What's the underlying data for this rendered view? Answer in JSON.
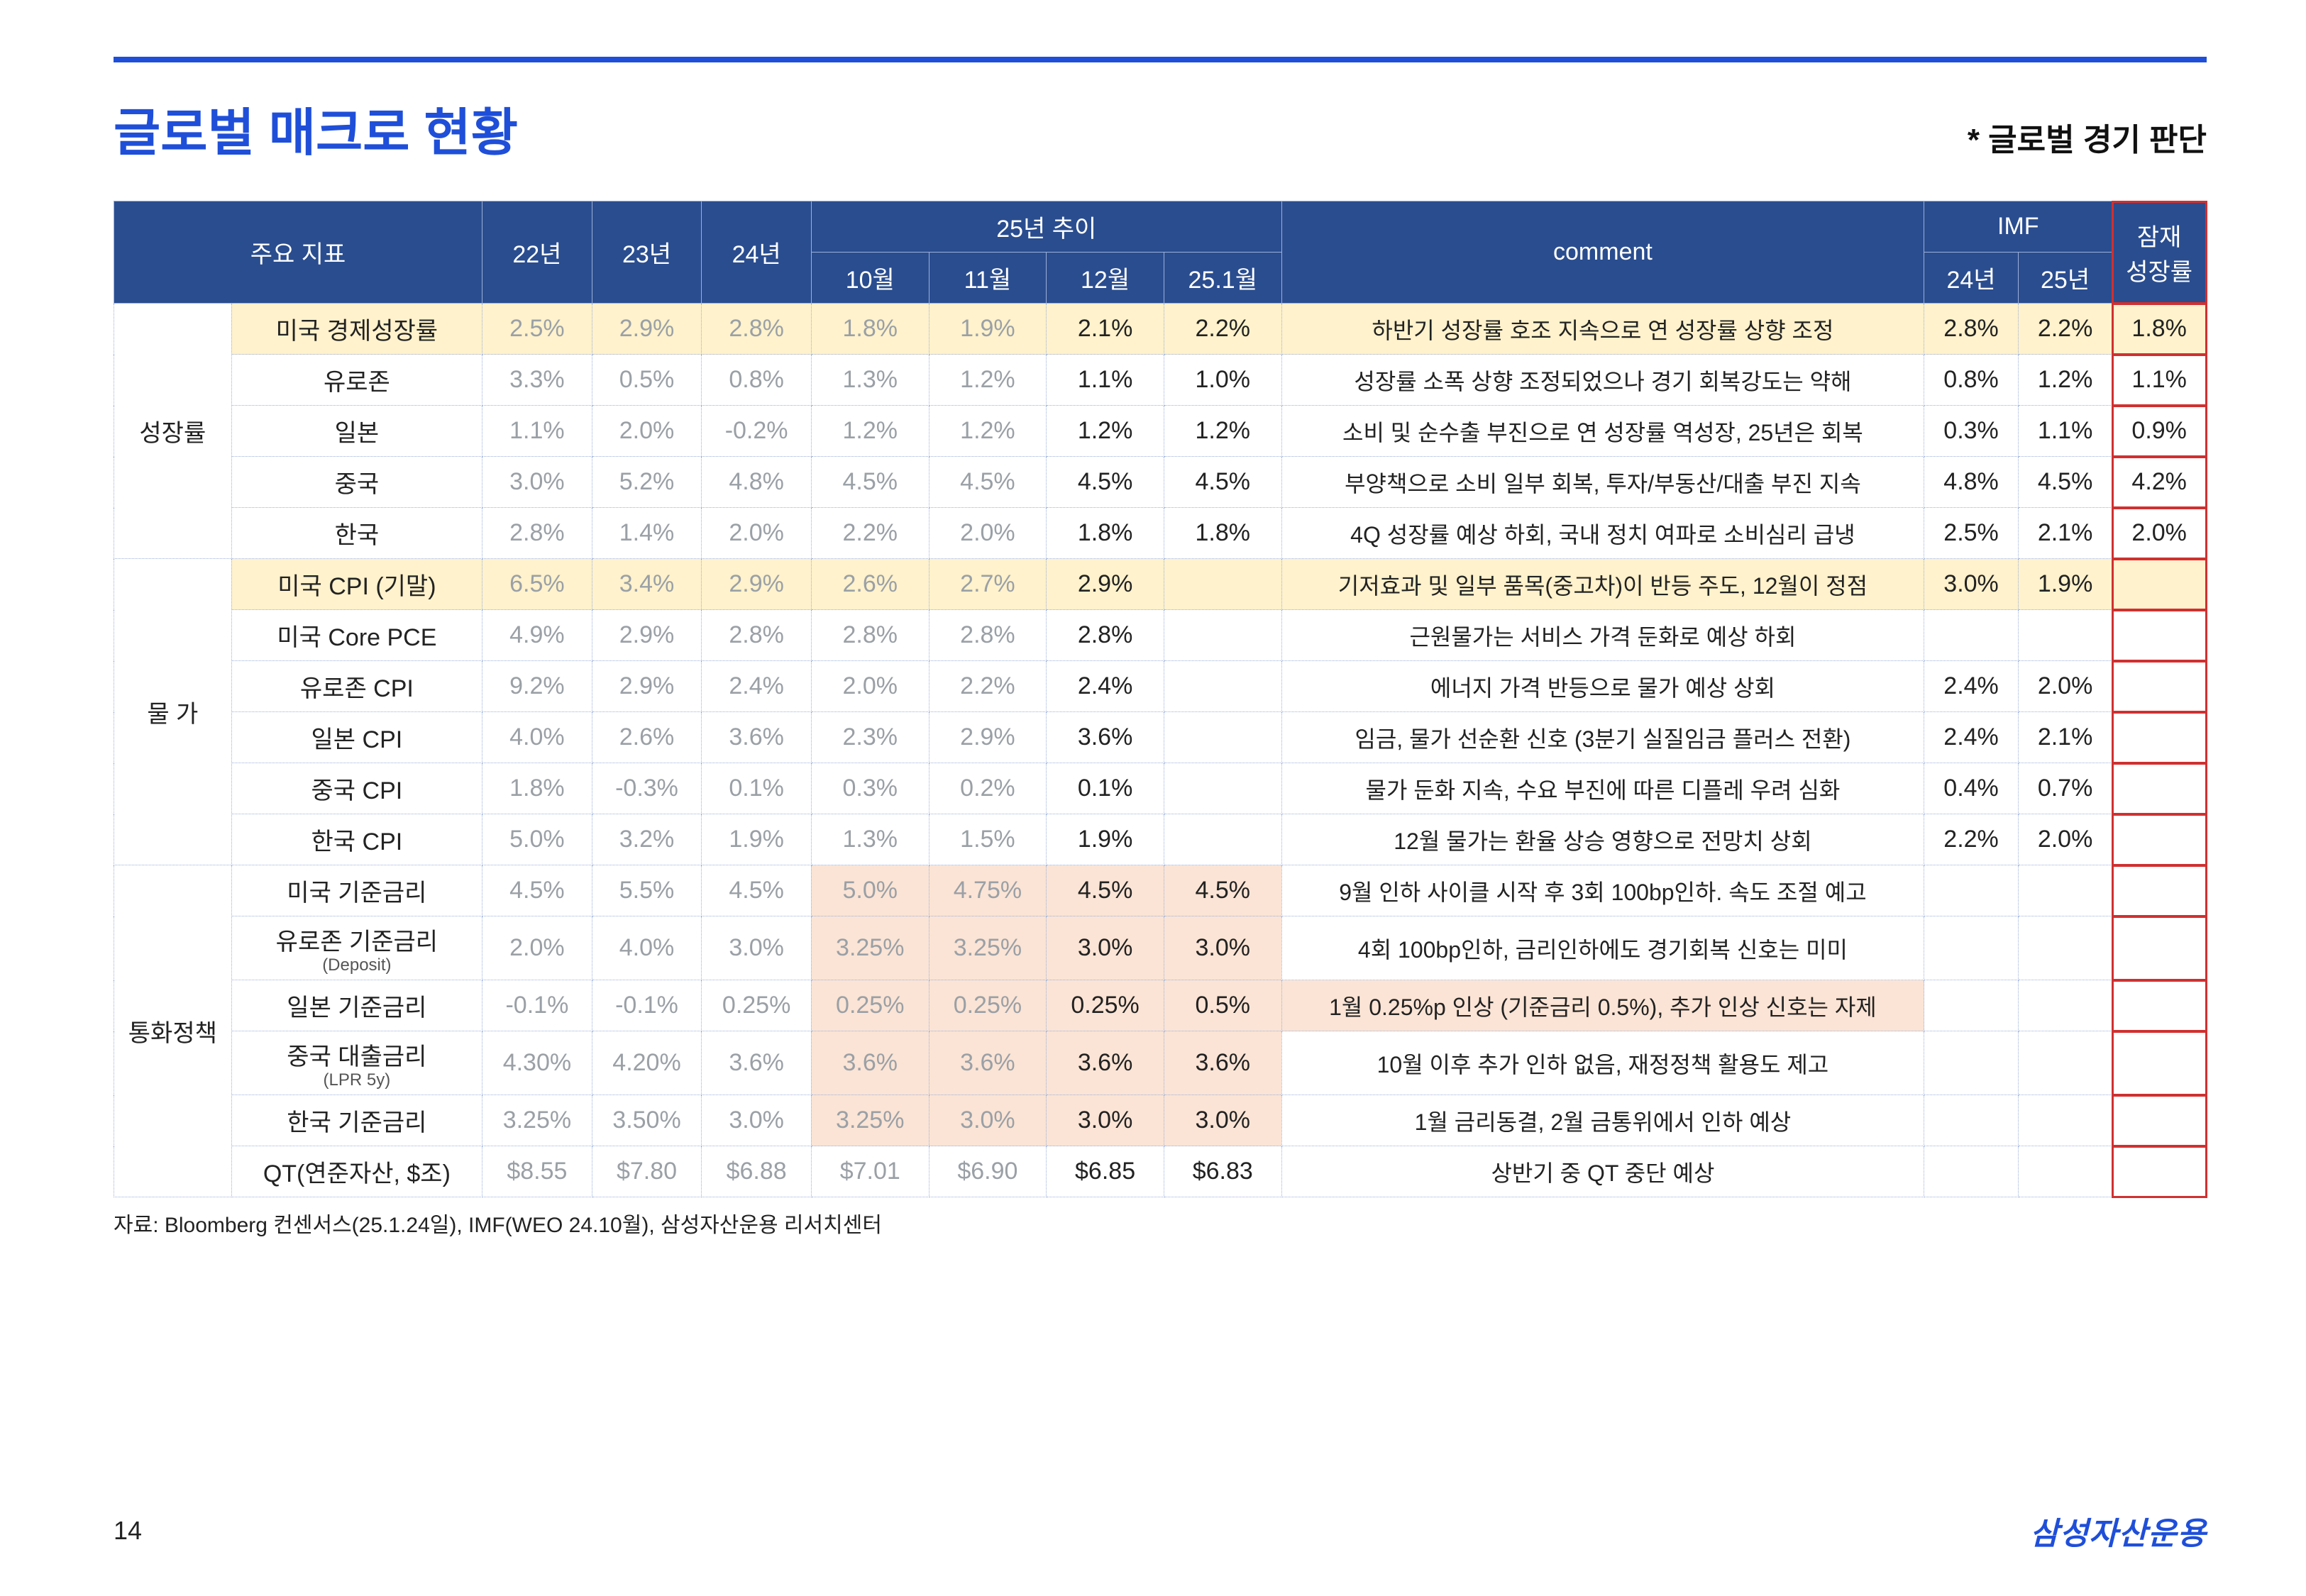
{
  "page": {
    "title": "글로벌 매크로 현황",
    "subtitle": "* 글로벌 경기 판단",
    "source": "자료: Bloomberg 컨센서스(25.1.24일), IMF(WEO 24.10월), 삼성자산운용 리서치센터",
    "page_number": "14",
    "brand": "삼성자산운용"
  },
  "colors": {
    "accent": "#1f4fd9",
    "header_bg": "#2a4d8f",
    "highlight_row": "#fff2cc",
    "peach": "#fbe4d5",
    "gray_text": "#9aa0a6",
    "red_outline": "#d03030",
    "border": "#9bb0d9"
  },
  "table": {
    "header": {
      "indicator": "주요 지표",
      "y22": "22년",
      "y23": "23년",
      "y24": "24년",
      "trend25": "25년 추이",
      "m10": "10월",
      "m11": "11월",
      "m12": "12월",
      "m251": "25.1월",
      "comment": "comment",
      "imf": "IMF",
      "imf24": "24년",
      "imf25": "25년",
      "potential": "잠재\n성장률"
    },
    "sections": [
      {
        "label": "성장률",
        "rows": [
          {
            "highlight": true,
            "indicator": "미국 경제성장률",
            "y22": "2.5%",
            "y23": "2.9%",
            "y24": "2.8%",
            "m10": "1.8%",
            "m11": "1.9%",
            "m12": "2.1%",
            "m251": "2.2%",
            "comment": "하반기 성장률 호조 지속으로 연 성장률 상향 조정",
            "imf24": "2.8%",
            "imf25": "2.2%",
            "potential": "1.8%"
          },
          {
            "indicator": "유로존",
            "y22": "3.3%",
            "y23": "0.5%",
            "y24": "0.8%",
            "m10": "1.3%",
            "m11": "1.2%",
            "m12": "1.1%",
            "m251": "1.0%",
            "comment": "성장률 소폭 상향 조정되었으나 경기 회복강도는 약해",
            "imf24": "0.8%",
            "imf25": "1.2%",
            "potential": "1.1%"
          },
          {
            "indicator": "일본",
            "y22": "1.1%",
            "y23": "2.0%",
            "y24": "-0.2%",
            "m10": "1.2%",
            "m11": "1.2%",
            "m12": "1.2%",
            "m251": "1.2%",
            "comment": "소비 및 순수출 부진으로 연 성장률 역성장, 25년은 회복",
            "imf24": "0.3%",
            "imf25": "1.1%",
            "potential": "0.9%"
          },
          {
            "indicator": "중국",
            "y22": "3.0%",
            "y23": "5.2%",
            "y24": "4.8%",
            "m10": "4.5%",
            "m11": "4.5%",
            "m12": "4.5%",
            "m251": "4.5%",
            "comment": "부양책으로 소비 일부 회복, 투자/부동산/대출 부진 지속",
            "imf24": "4.8%",
            "imf25": "4.5%",
            "potential": "4.2%"
          },
          {
            "indicator": "한국",
            "y22": "2.8%",
            "y23": "1.4%",
            "y24": "2.0%",
            "m10": "2.2%",
            "m11": "2.0%",
            "m12": "1.8%",
            "m251": "1.8%",
            "comment": "4Q 성장률 예상 하회, 국내 정치 여파로 소비심리 급냉",
            "imf24": "2.5%",
            "imf25": "2.1%",
            "potential": "2.0%"
          }
        ]
      },
      {
        "label": "물 가",
        "rows": [
          {
            "highlight": true,
            "indicator": "미국 CPI (기말)",
            "y22": "6.5%",
            "y23": "3.4%",
            "y24": "2.9%",
            "m10": "2.6%",
            "m11": "2.7%",
            "m12": "2.9%",
            "m251": "",
            "comment": "기저효과 및 일부 품목(중고차)이 반등 주도, 12월이 정점",
            "imf24": "3.0%",
            "imf25": "1.9%",
            "potential": ""
          },
          {
            "indicator": "미국 Core PCE",
            "y22": "4.9%",
            "y23": "2.9%",
            "y24": "2.8%",
            "m10": "2.8%",
            "m11": "2.8%",
            "m12": "2.8%",
            "m251": "",
            "comment": "근원물가는 서비스 가격 둔화로 예상 하회",
            "imf24": "",
            "imf25": "",
            "potential": ""
          },
          {
            "indicator": "유로존 CPI",
            "y22": "9.2%",
            "y23": "2.9%",
            "y24": "2.4%",
            "m10": "2.0%",
            "m11": "2.2%",
            "m12": "2.4%",
            "m251": "",
            "comment": "에너지 가격 반등으로 물가 예상 상회",
            "imf24": "2.4%",
            "imf25": "2.0%",
            "potential": ""
          },
          {
            "indicator": "일본 CPI",
            "y22": "4.0%",
            "y23": "2.6%",
            "y24": "3.6%",
            "m10": "2.3%",
            "m11": "2.9%",
            "m12": "3.6%",
            "m251": "",
            "comment": "임금, 물가 선순환 신호 (3분기 실질임금 플러스 전환)",
            "imf24": "2.4%",
            "imf25": "2.1%",
            "potential": ""
          },
          {
            "indicator": "중국 CPI",
            "y22": "1.8%",
            "y23": "-0.3%",
            "y24": "0.1%",
            "m10": "0.3%",
            "m11": "0.2%",
            "m12": "0.1%",
            "m251": "",
            "comment": "물가 둔화 지속, 수요 부진에 따른 디플레 우려 심화",
            "imf24": "0.4%",
            "imf25": "0.7%",
            "potential": ""
          },
          {
            "indicator": "한국 CPI",
            "y22": "5.0%",
            "y23": "3.2%",
            "y24": "1.9%",
            "m10": "1.3%",
            "m11": "1.5%",
            "m12": "1.9%",
            "m251": "",
            "comment": "12월 물가는 환율 상승 영향으로 전망치 상회",
            "imf24": "2.2%",
            "imf25": "2.0%",
            "potential": ""
          }
        ]
      },
      {
        "label": "통화정책",
        "rows": [
          {
            "indicator": "미국 기준금리",
            "y22": "4.5%",
            "y23": "5.5%",
            "y24": "4.5%",
            "m10": "5.0%",
            "m11": "4.75%",
            "m12": "4.5%",
            "m251": "4.5%",
            "comment": "9월 인하 사이클 시작 후 3회 100bp인하. 속도 조절 예고",
            "imf24": "",
            "imf25": "",
            "potential": "",
            "peach_months": true
          },
          {
            "indicator": "유로존 기준금리",
            "indicator_sub": "(Deposit)",
            "y22": "2.0%",
            "y23": "4.0%",
            "y24": "3.0%",
            "m10": "3.25%",
            "m11": "3.25%",
            "m12": "3.0%",
            "m251": "3.0%",
            "comment": "4회 100bp인하, 금리인하에도 경기회복 신호는 미미",
            "imf24": "",
            "imf25": "",
            "potential": "",
            "peach_months": true
          },
          {
            "indicator": "일본 기준금리",
            "y22": "-0.1%",
            "y23": "-0.1%",
            "y24": "0.25%",
            "m10": "0.25%",
            "m11": "0.25%",
            "m12": "0.25%",
            "m251": "0.5%",
            "comment": "1월 0.25%p 인상 (기준금리 0.5%), 추가 인상 신호는 자제",
            "imf24": "",
            "imf25": "",
            "potential": "",
            "peach_months": true,
            "peach_comment": true
          },
          {
            "indicator": "중국 대출금리",
            "indicator_sub": "(LPR 5y)",
            "y22": "4.30%",
            "y23": "4.20%",
            "y24": "3.6%",
            "m10": "3.6%",
            "m11": "3.6%",
            "m12": "3.6%",
            "m251": "3.6%",
            "comment": "10월 이후 추가 인하 없음, 재정정책 활용도 제고",
            "imf24": "",
            "imf25": "",
            "potential": "",
            "peach_months": true
          },
          {
            "indicator": "한국 기준금리",
            "y22": "3.25%",
            "y23": "3.50%",
            "y24": "3.0%",
            "m10": "3.25%",
            "m11": "3.0%",
            "m12": "3.0%",
            "m251": "3.0%",
            "comment": "1월 금리동결, 2월 금통위에서 인하 예상",
            "imf24": "",
            "imf25": "",
            "potential": "",
            "peach_months": true
          },
          {
            "indicator": "QT(연준자산, $조)",
            "y22": "$8.55",
            "y23": "$7.80",
            "y24": "$6.88",
            "m10": "$7.01",
            "m11": "$6.90",
            "m12": "$6.85",
            "m251": "$6.83",
            "comment": "상반기 중 QT 중단 예상",
            "imf24": "",
            "imf25": "",
            "potential": ""
          }
        ]
      }
    ]
  }
}
